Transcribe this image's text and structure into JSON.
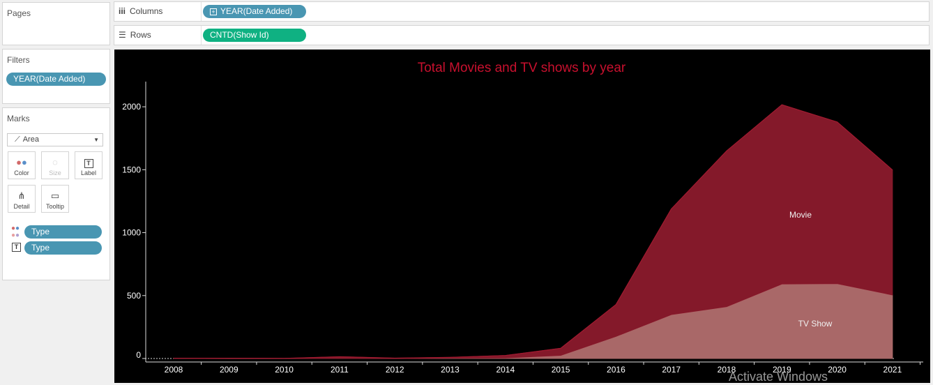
{
  "pages": {
    "title": "Pages"
  },
  "columns_shelf": {
    "label": "Columns",
    "pill": "YEAR(Date Added)"
  },
  "rows_shelf": {
    "label": "Rows",
    "pill": "CNTD(Show Id)"
  },
  "filters": {
    "title": "Filters",
    "pill": "YEAR(Date Added)"
  },
  "marks": {
    "title": "Marks",
    "mark_type": "Area",
    "buttons": {
      "color": "Color",
      "size": "Size",
      "label": "Label",
      "detail": "Detail",
      "tooltip": "Tooltip"
    },
    "fields": [
      "Type",
      "Type"
    ]
  },
  "chart_data": {
    "type": "area",
    "stacked": true,
    "title": "Total Movies and TV shows by year",
    "title_color": "#c8102e",
    "x": [
      "2008",
      "2009",
      "2010",
      "2011",
      "2012",
      "2013",
      "2014",
      "2015",
      "2016",
      "2017",
      "2018",
      "2019",
      "2020",
      "2021"
    ],
    "y_ticks": [
      "0",
      "500",
      "1000",
      "1500",
      "2000"
    ],
    "ylim": [
      0,
      2200
    ],
    "grid": false,
    "series": [
      {
        "name": "TV Show",
        "color": "#a96868",
        "values": [
          1,
          0,
          0,
          1,
          0,
          3,
          5,
          25,
          176,
          349,
          412,
          592,
          595,
          505
        ]
      },
      {
        "name": "Movie",
        "color": "#84192a",
        "values": [
          1,
          2,
          1,
          13,
          3,
          6,
          19,
          56,
          253,
          839,
          1237,
          1424,
          1284,
          993
        ]
      }
    ],
    "labels": {
      "Movie": "Movie",
      "TV Show": "TV Show"
    }
  },
  "watermark": "Activate Windows"
}
